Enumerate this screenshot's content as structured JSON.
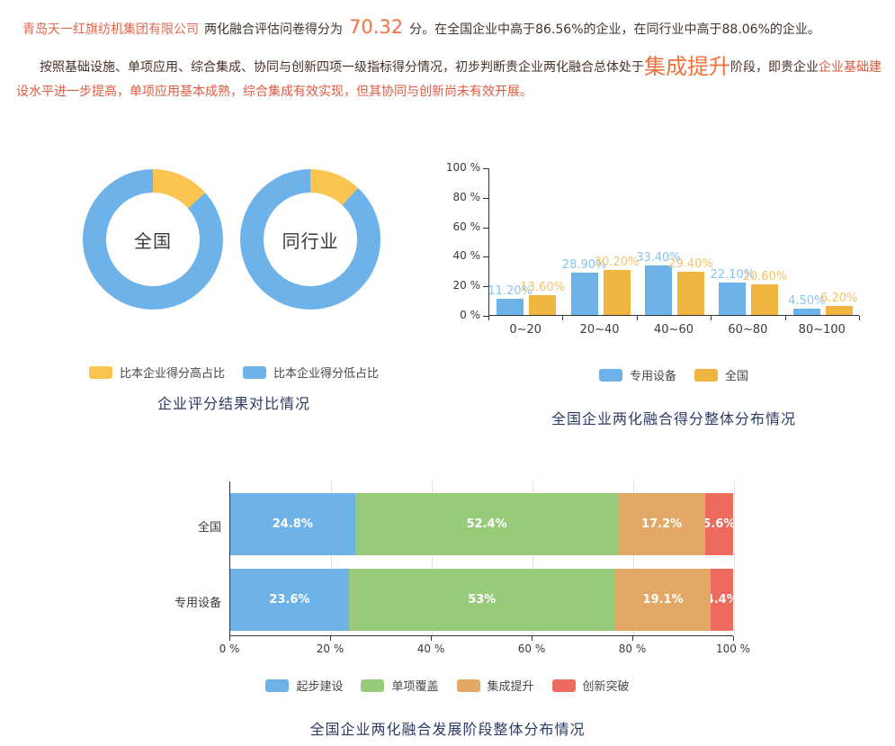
{
  "colors": {
    "company": "#e2694e",
    "body_text": "#46322b",
    "accent_orange": "#f4703b",
    "tail_red": "#dd5b41",
    "blue": "#6db3ea",
    "donut_yellow": "#fac451",
    "bar_yellow": "#f0b441",
    "green": "#97cb79",
    "stack_orange": "#e3a866",
    "stack_red": "#ed6b5e",
    "title_navy": "#2c3a64",
    "blue_label": "#86c4f0",
    "yellow_label": "#f3c365"
  },
  "header": {
    "company": "青岛天一红旗纺机集团有限公司",
    "score_prefix": "两化融合评估问卷得分为",
    "score": "70.32",
    "score_suffix": "分。在全国企业中高于86.56%的企业，在同行业中高于88.06%的企业。",
    "para2_part1": "按照基础设施、单项应用、综合集成、协同与创新四项一级指标得分情况，初步判断贵企业两化融合总体处于",
    "stage": "集成提升",
    "para2_part2": "阶段，即贵企业",
    "para2_part3": "企业基础建设水平进一步提高，单项应用基本成熟，综合集成有效实现，但其协同与创新尚未有效开展。"
  },
  "chart_data": [
    {
      "id": "score-compare-donuts",
      "type": "pie",
      "title": "企业评分结果对比情况",
      "legend": [
        {
          "label": "比本企业得分高占比",
          "color": "#fac451"
        },
        {
          "label": "比本企业得分低占比",
          "color": "#6db3ea"
        }
      ],
      "donuts": [
        {
          "label": "全国",
          "higher_pct": 13.44,
          "lower_pct": 86.56
        },
        {
          "label": "同行业",
          "higher_pct": 11.94,
          "lower_pct": 88.06
        }
      ]
    },
    {
      "id": "score-distribution-bars",
      "type": "bar",
      "title": "全国企业两化融合得分整体分布情况",
      "categories": [
        "0~20",
        "20~40",
        "40~60",
        "60~80",
        "80~100"
      ],
      "series": [
        {
          "name": "专用设备",
          "color": "#6db3ea",
          "label_color": "#86c4f0",
          "values": [
            11.2,
            28.9,
            33.4,
            22.1,
            4.5
          ],
          "labels": [
            "11.20%",
            "28.90%",
            "33.40%",
            "22.10%",
            "4.50%"
          ]
        },
        {
          "name": "全国",
          "color": "#f0b441",
          "label_color": "#f3c365",
          "values": [
            13.6,
            30.2,
            29.4,
            20.6,
            6.2
          ],
          "labels": [
            "13.60%",
            "30.20%",
            "29.40%",
            "20.60%",
            "6.20%"
          ]
        }
      ],
      "y_ticks": [
        0,
        20,
        40,
        60,
        80,
        100
      ],
      "y_tick_labels": [
        "0 %",
        "20 %",
        "40 %",
        "60 %",
        "80 %",
        "100 %"
      ],
      "ylim": [
        0,
        100
      ],
      "legend_position": "bottom",
      "grid": false
    },
    {
      "id": "stage-distribution-stacked",
      "type": "area",
      "subtype": "horizontal-stacked-bar",
      "title": "全国企业两化融合发展阶段整体分布情况",
      "segments": [
        {
          "name": "起步建设",
          "color": "#6db3ea"
        },
        {
          "name": "单项覆盖",
          "color": "#97cb79"
        },
        {
          "name": "集成提升",
          "color": "#e3a866"
        },
        {
          "name": "创新突破",
          "color": "#ed6b5e"
        }
      ],
      "rows": [
        {
          "label": "全国",
          "values": [
            24.8,
            52.4,
            17.2,
            5.6
          ],
          "labels": [
            "24.8%",
            "52.4%",
            "17.2%",
            "5.6%"
          ]
        },
        {
          "label": "专用设备",
          "values": [
            23.6,
            53,
            19.1,
            4.4
          ],
          "labels": [
            "23.6%",
            "53%",
            "19.1%",
            "4.4%"
          ]
        }
      ],
      "x_ticks": [
        0,
        20,
        40,
        60,
        80,
        100
      ],
      "x_tick_labels": [
        "0 %",
        "20 %",
        "40 %",
        "60 %",
        "80 %",
        "100 %"
      ],
      "xlim": [
        0,
        100
      ],
      "legend_position": "bottom",
      "grid": true
    }
  ]
}
